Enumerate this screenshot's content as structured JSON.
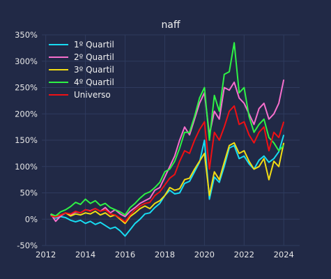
{
  "chart_data": {
    "type": "line",
    "title": "naff",
    "xlabel": "",
    "ylabel": "",
    "xlim": [
      2011.8,
      2024.8
    ],
    "ylim": [
      -50,
      350
    ],
    "x_ticks": [
      2012,
      2014,
      2016,
      2018,
      2020,
      2022,
      2024
    ],
    "y_ticks": [
      -50,
      0,
      50,
      100,
      150,
      200,
      250,
      300,
      350
    ],
    "y_tick_suffix": "%",
    "grid": true,
    "legend_position": "top-left",
    "background": "#212946",
    "x": [
      2012.25,
      2012.5,
      2012.75,
      2013.0,
      2013.25,
      2013.5,
      2013.75,
      2014.0,
      2014.25,
      2014.5,
      2014.75,
      2015.0,
      2015.25,
      2015.5,
      2015.75,
      2016.0,
      2016.25,
      2016.5,
      2016.75,
      2017.0,
      2017.25,
      2017.5,
      2017.75,
      2018.0,
      2018.25,
      2018.5,
      2018.75,
      2019.0,
      2019.25,
      2019.5,
      2019.75,
      2020.0,
      2020.25,
      2020.5,
      2020.75,
      2021.0,
      2021.25,
      2021.5,
      2021.75,
      2022.0,
      2022.25,
      2022.5,
      2022.75,
      2023.0,
      2023.25,
      2023.5,
      2023.75,
      2024.0
    ],
    "series": [
      {
        "name": "1º Quartil",
        "color": "#18dcf2",
        "values": [
          8,
          2,
          5,
          3,
          -2,
          -5,
          -2,
          -8,
          -4,
          -10,
          -6,
          -12,
          -18,
          -15,
          -22,
          -32,
          -20,
          -8,
          0,
          10,
          12,
          22,
          30,
          45,
          55,
          48,
          50,
          68,
          72,
          90,
          108,
          150,
          38,
          80,
          70,
          100,
          135,
          140,
          115,
          120,
          105,
          95,
          112,
          120,
          108,
          115,
          128,
          160
        ]
      },
      {
        "name": "2º Quartil",
        "color": "#f76fcd",
        "values": [
          10,
          -4,
          6,
          12,
          8,
          14,
          12,
          18,
          16,
          20,
          15,
          22,
          12,
          18,
          10,
          5,
          15,
          22,
          30,
          35,
          40,
          55,
          60,
          80,
          100,
          120,
          150,
          175,
          160,
          190,
          220,
          240,
          160,
          205,
          190,
          250,
          245,
          260,
          230,
          220,
          200,
          180,
          210,
          220,
          190,
          200,
          220,
          265
        ]
      },
      {
        "name": "3º Quartil",
        "color": "#f2dc14",
        "values": [
          10,
          5,
          8,
          12,
          6,
          10,
          8,
          12,
          10,
          15,
          8,
          12,
          5,
          8,
          0,
          -8,
          5,
          12,
          20,
          25,
          20,
          30,
          35,
          45,
          60,
          55,
          58,
          75,
          78,
          95,
          110,
          125,
          45,
          90,
          75,
          108,
          140,
          145,
          125,
          130,
          110,
          95,
          100,
          115,
          75,
          110,
          100,
          145
        ]
      },
      {
        "name": "4º Quartil",
        "color": "#2ef245",
        "values": [
          10,
          6,
          14,
          18,
          24,
          32,
          28,
          38,
          30,
          35,
          26,
          30,
          22,
          18,
          14,
          8,
          22,
          30,
          40,
          48,
          52,
          60,
          70,
          90,
          95,
          110,
          135,
          165,
          165,
          195,
          230,
          250,
          150,
          235,
          205,
          275,
          280,
          335,
          240,
          250,
          195,
          165,
          180,
          190,
          155,
          145,
          130,
          140
        ]
      },
      {
        "name": "Universo",
        "color": "#ef1014",
        "values": [
          6,
          4,
          8,
          12,
          10,
          15,
          12,
          18,
          15,
          20,
          15,
          18,
          10,
          8,
          2,
          -5,
          8,
          18,
          25,
          30,
          32,
          45,
          52,
          65,
          78,
          85,
          110,
          130,
          125,
          150,
          170,
          185,
          95,
          165,
          150,
          175,
          205,
          215,
          180,
          185,
          160,
          145,
          165,
          175,
          130,
          165,
          155,
          185
        ]
      }
    ]
  }
}
